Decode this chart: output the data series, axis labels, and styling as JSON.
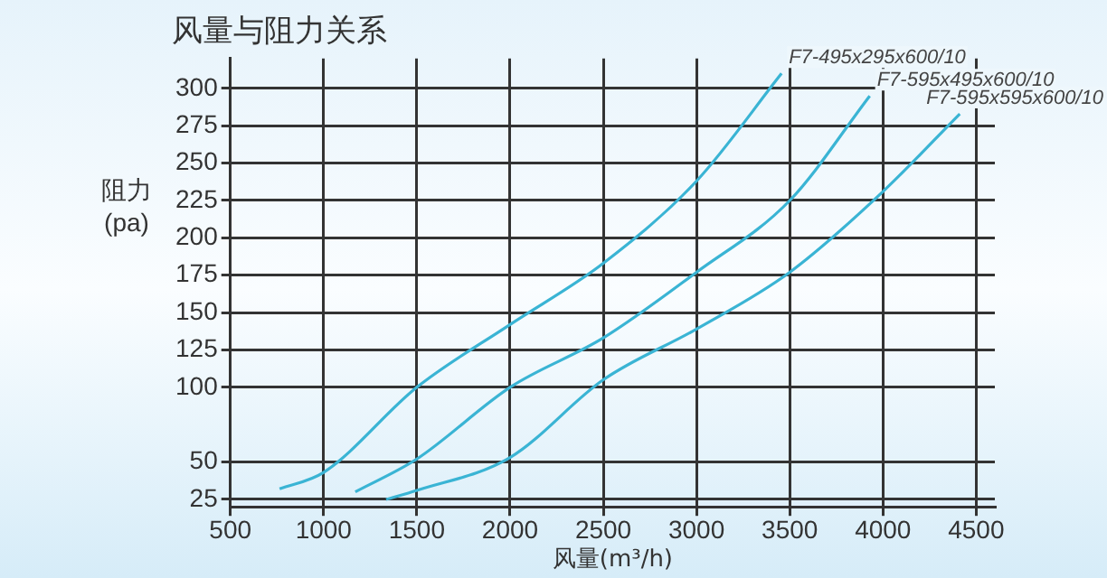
{
  "chart_data": {
    "type": "line",
    "title": "风量与阻力关系",
    "xlabel": "风量(m³/h)",
    "ylabel": "阻力(pa)",
    "xlim": [
      500,
      4600
    ],
    "xticks": [
      500,
      1000,
      1500,
      2000,
      2500,
      3000,
      3500,
      4000,
      4500
    ],
    "ylim": [
      20,
      320
    ],
    "yticks": [
      25,
      50,
      100,
      125,
      150,
      175,
      200,
      225,
      250,
      275,
      300
    ],
    "grid": true,
    "legend": false,
    "marker": "none",
    "line_style": "solid",
    "series": [
      {
        "name": "F7-495x295x600/10",
        "color": "#3ab4d4",
        "x": [
          764,
          1000,
          1500,
          2000,
          2500,
          3000,
          3456
        ],
        "values": [
          32,
          43,
          100,
          142,
          183,
          238,
          310
        ]
      },
      {
        "name": "F7-595x495x600/10",
        "color": "#3ab4d4",
        "x": [
          1170,
          1500,
          2000,
          2500,
          3000,
          3500,
          3929
        ],
        "values": [
          30,
          52,
          100,
          133,
          177,
          225,
          295
        ]
      },
      {
        "name": "F7-595x595x600/10",
        "color": "#3ab4d4",
        "x": [
          1335,
          1500,
          2000,
          2500,
          3000,
          3500,
          4000,
          4412
        ],
        "values": [
          25,
          31,
          53,
          105,
          139,
          177,
          231,
          283
        ]
      }
    ]
  }
}
